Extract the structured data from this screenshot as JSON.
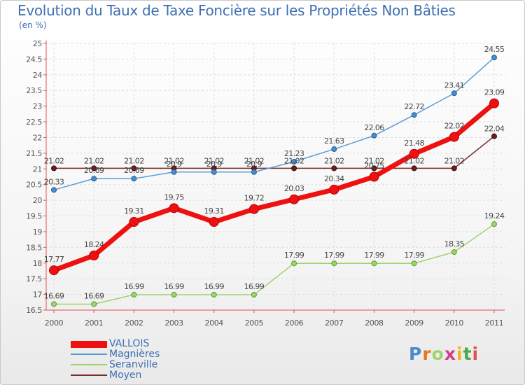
{
  "title": "Evolution du Taux de Taxe Foncière sur les Propriétés Non Bâties",
  "unit_label": "(en %)",
  "logo_text": "Proxiti",
  "colors": {
    "title": "#3d6fb3",
    "axis": "#e05050",
    "grid": "#dddddd",
    "VALLOIS": "#ee1111",
    "Magnières": "#5c9cd4",
    "Seranville": "#9ed46a",
    "Moyen": "#7a2a2a"
  },
  "chart_data": {
    "type": "line",
    "title": "Evolution du Taux de Taxe Foncière sur les Propriétés Non Bâties",
    "ylabel": "(en %)",
    "xlabel": "",
    "categories": [
      "2000",
      "2001",
      "2002",
      "2003",
      "2004",
      "2005",
      "2006",
      "2007",
      "2008",
      "2009",
      "2010",
      "2011"
    ],
    "ylim": [
      16.5,
      25
    ],
    "yticks": [
      "16.5",
      "17",
      "17.5",
      "18",
      "18.5",
      "19",
      "19.5",
      "20",
      "20.5",
      "21",
      "21.5",
      "22",
      "22.5",
      "23",
      "23.5",
      "24",
      "24.5",
      "25"
    ],
    "grid": true,
    "legend_position": "bottom-left",
    "series": [
      {
        "name": "VALLOIS",
        "values": [
          17.77,
          18.24,
          19.31,
          19.75,
          19.31,
          19.72,
          20.03,
          20.34,
          20.75,
          21.48,
          22.02,
          23.09
        ],
        "labels": [
          "17.77",
          "18.24",
          "19.31",
          "19.75",
          "19.31",
          "19.72",
          "20.03",
          "20.34",
          "20.75",
          "21.48",
          "22.02",
          "23.09"
        ]
      },
      {
        "name": "Magnières",
        "values": [
          20.33,
          20.69,
          20.69,
          20.9,
          20.9,
          20.9,
          21.23,
          21.63,
          22.06,
          22.72,
          23.41,
          24.55
        ],
        "labels": [
          "20.33",
          "20.69",
          "20.69",
          "20.9",
          "20.9",
          "20.9",
          "21.23",
          "21.63",
          "22.06",
          "22.72",
          "23.41",
          "24.55"
        ]
      },
      {
        "name": "Seranville",
        "values": [
          16.69,
          16.69,
          16.99,
          16.99,
          16.99,
          16.99,
          17.99,
          17.99,
          17.99,
          17.99,
          18.35,
          19.24
        ],
        "labels": [
          "16.69",
          "16.69",
          "16.99",
          "16.99",
          "16.99",
          "16.99",
          "17.99",
          "17.99",
          "17.99",
          "17.99",
          "18.35",
          "19.24"
        ]
      },
      {
        "name": "Moyen",
        "values": [
          21.02,
          21.02,
          21.02,
          21.02,
          21.02,
          21.02,
          21.02,
          21.02,
          21.02,
          21.02,
          21.02,
          22.04
        ],
        "labels": [
          "21.02",
          "21.02",
          "21.02",
          "21.02",
          "21.02",
          "21.02",
          "21.02",
          "21.02",
          "21.02",
          "21.02",
          "21.02",
          "22.04"
        ]
      }
    ]
  }
}
